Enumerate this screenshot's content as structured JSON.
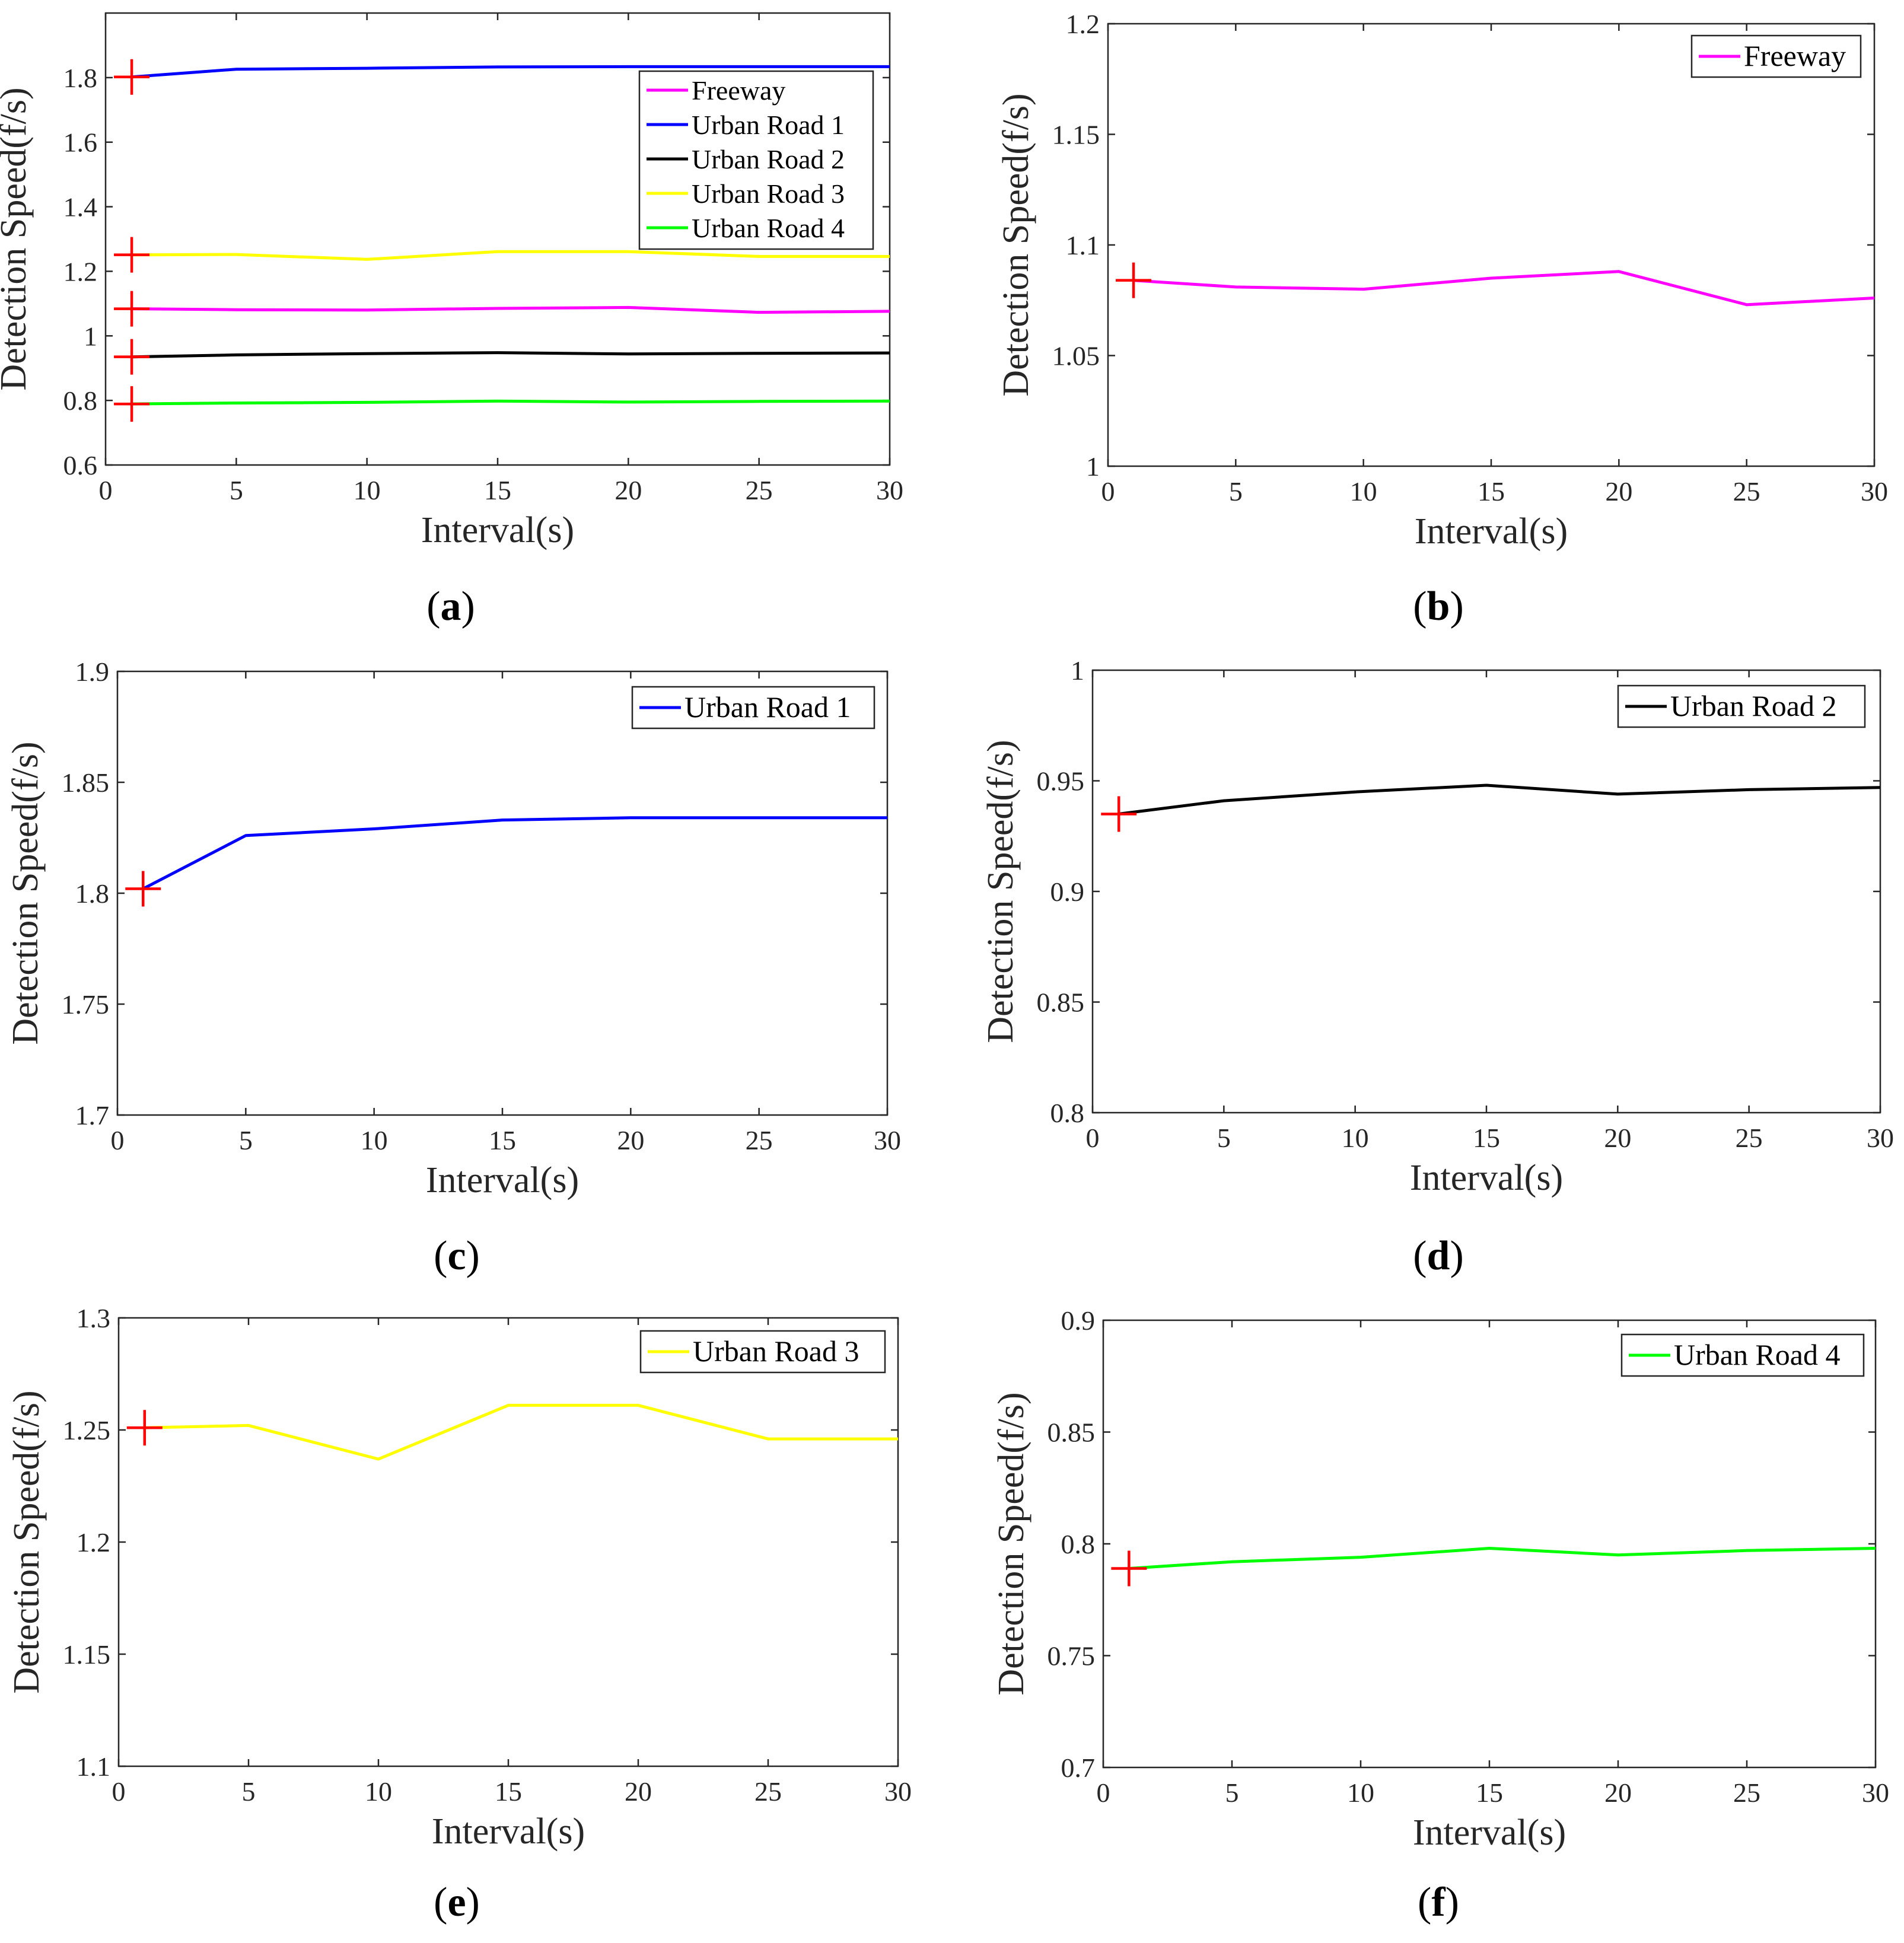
{
  "chart_data": [
    {
      "id": "a",
      "caption": "a",
      "type": "line",
      "xlabel": "Interval(s)",
      "ylabel": "Detection Speed(f/s)",
      "xlim": [
        0,
        30
      ],
      "ylim": [
        0.6,
        2.0
      ],
      "xticks": [
        "0",
        "5",
        "10",
        "15",
        "20",
        "25",
        "30"
      ],
      "yticks": [
        "0.6",
        "0.8",
        "1",
        "1.2",
        "1.4",
        "1.6",
        "1.8"
      ],
      "x": [
        1,
        5,
        10,
        15,
        20,
        25,
        30
      ],
      "start_marker_x": 1,
      "legend_position": "top-right",
      "series": [
        {
          "name": "Freeway",
          "color": "#ff00ff",
          "values": [
            1.084,
            1.081,
            1.08,
            1.085,
            1.088,
            1.073,
            1.076
          ]
        },
        {
          "name": "Urban Road 1",
          "color": "#0000ff",
          "values": [
            1.802,
            1.826,
            1.829,
            1.833,
            1.834,
            1.834,
            1.834
          ]
        },
        {
          "name": "Urban Road 2",
          "color": "#000000",
          "values": [
            0.935,
            0.941,
            0.945,
            0.948,
            0.944,
            0.946,
            0.947
          ]
        },
        {
          "name": "Urban Road 3",
          "color": "#ffff00",
          "values": [
            1.251,
            1.252,
            1.237,
            1.261,
            1.261,
            1.246,
            1.246
          ]
        },
        {
          "name": "Urban Road 4",
          "color": "#00ff00",
          "values": [
            0.789,
            0.792,
            0.794,
            0.798,
            0.795,
            0.797,
            0.798
          ]
        }
      ]
    },
    {
      "id": "b",
      "caption": "b",
      "type": "line",
      "xlabel": "Interval(s)",
      "ylabel": "Detection Speed(f/s)",
      "xlim": [
        0,
        30
      ],
      "ylim": [
        1.0,
        1.2
      ],
      "xticks": [
        "0",
        "5",
        "10",
        "15",
        "20",
        "25",
        "30"
      ],
      "yticks": [
        "1",
        "1.05",
        "1.1",
        "1.15",
        "1.2"
      ],
      "x": [
        1,
        5,
        10,
        15,
        20,
        25,
        30
      ],
      "start_marker_x": 1,
      "legend_position": "top-right",
      "series": [
        {
          "name": "Freeway",
          "color": "#ff00ff",
          "values": [
            1.084,
            1.081,
            1.08,
            1.085,
            1.088,
            1.073,
            1.076
          ]
        }
      ]
    },
    {
      "id": "c",
      "caption": "c",
      "type": "line",
      "xlabel": "Interval(s)",
      "ylabel": "Detection Speed(f/s)",
      "xlim": [
        0,
        30
      ],
      "ylim": [
        1.7,
        1.9
      ],
      "xticks": [
        "0",
        "5",
        "10",
        "15",
        "20",
        "25",
        "30"
      ],
      "yticks": [
        "1.7",
        "1.75",
        "1.8",
        "1.85",
        "1.9"
      ],
      "x": [
        1,
        5,
        10,
        15,
        20,
        25,
        30
      ],
      "start_marker_x": 1,
      "legend_position": "top-right",
      "series": [
        {
          "name": "Urban Road 1",
          "color": "#0000ff",
          "values": [
            1.802,
            1.826,
            1.829,
            1.833,
            1.834,
            1.834,
            1.834
          ]
        }
      ]
    },
    {
      "id": "d",
      "caption": "d",
      "type": "line",
      "xlabel": "Interval(s)",
      "ylabel": "Detection Speed(f/s)",
      "xlim": [
        0,
        30
      ],
      "ylim": [
        0.8,
        1.0
      ],
      "xticks": [
        "0",
        "5",
        "10",
        "15",
        "20",
        "25",
        "30"
      ],
      "yticks": [
        "0.8",
        "0.85",
        "0.9",
        "0.95",
        "1"
      ],
      "x": [
        1,
        5,
        10,
        15,
        20,
        25,
        30
      ],
      "start_marker_x": 1,
      "legend_position": "top-right",
      "series": [
        {
          "name": "Urban Road 2",
          "color": "#000000",
          "values": [
            0.935,
            0.941,
            0.945,
            0.948,
            0.944,
            0.946,
            0.947
          ]
        }
      ]
    },
    {
      "id": "e",
      "caption": "e",
      "type": "line",
      "xlabel": "Interval(s)",
      "ylabel": "Detection Speed(f/s)",
      "xlim": [
        0,
        30
      ],
      "ylim": [
        1.1,
        1.3
      ],
      "xticks": [
        "0",
        "5",
        "10",
        "15",
        "20",
        "25",
        "30"
      ],
      "yticks": [
        "1.1",
        "1.15",
        "1.2",
        "1.25",
        "1.3"
      ],
      "x": [
        1,
        5,
        10,
        15,
        20,
        25,
        30
      ],
      "start_marker_x": 1,
      "legend_position": "top-right",
      "series": [
        {
          "name": "Urban Road 3",
          "color": "#ffff00",
          "values": [
            1.251,
            1.252,
            1.237,
            1.261,
            1.261,
            1.246,
            1.246
          ]
        }
      ]
    },
    {
      "id": "f",
      "caption": "f",
      "type": "line",
      "xlabel": "Interval(s)",
      "ylabel": "Detection Speed(f/s)",
      "xlim": [
        0,
        30
      ],
      "ylim": [
        0.7,
        0.9
      ],
      "xticks": [
        "0",
        "5",
        "10",
        "15",
        "20",
        "25",
        "30"
      ],
      "yticks": [
        "0.7",
        "0.75",
        "0.8",
        "0.85",
        "0.9"
      ],
      "x": [
        1,
        5,
        10,
        15,
        20,
        25,
        30
      ],
      "start_marker_x": 1,
      "legend_position": "top-right",
      "series": [
        {
          "name": "Urban Road 4",
          "color": "#00ff00",
          "values": [
            0.789,
            0.792,
            0.794,
            0.798,
            0.795,
            0.797,
            0.798
          ]
        }
      ]
    }
  ]
}
